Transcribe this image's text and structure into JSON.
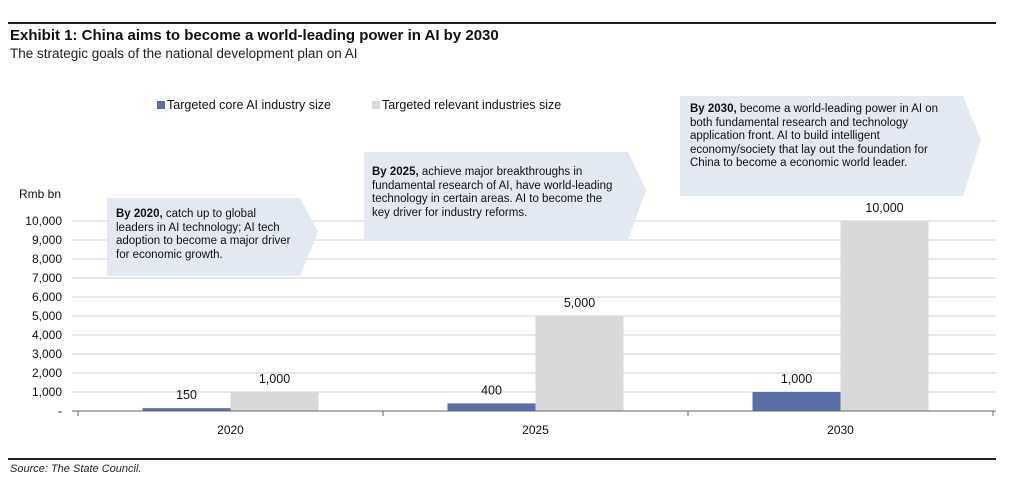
{
  "header": {
    "title": "Exhibit 1: China aims to become a world-leading power in AI by 2030",
    "subtitle": "The strategic goals of the national development plan on AI"
  },
  "source": "Source: The State Council.",
  "colors": {
    "core": "#5b6ea8",
    "relevant": "#d9d9d9",
    "callout": "#e3e8f1",
    "grid": "#d0d0d0"
  },
  "callouts": [
    {
      "bold": "By 2020,",
      "text": " catch up to global leaders in AI technology; AI tech adoption to become a major driver for economic growth."
    },
    {
      "bold": "By 2025,",
      "text": " achieve major breakthroughs in fundamental research of AI, have world-leading technology in certain areas. AI to become the key driver for industry reforms."
    },
    {
      "bold": "By 2030,",
      "text": " become a world-leading power in AI on both fundamental  research and technology application front. AI to build intelligent economy/society that lay out the foundation for China to become a  economic world leader."
    }
  ],
  "chart_data": {
    "type": "bar",
    "categories": [
      "2020",
      "2025",
      "2030"
    ],
    "series": [
      {
        "name": "Targeted core AI industry size",
        "values": [
          150,
          400,
          1000
        ],
        "labels": [
          "150",
          "400",
          "1,000"
        ],
        "color": "#5b6ea8"
      },
      {
        "name": "Targeted relevant industries size",
        "values": [
          1000,
          5000,
          10000
        ],
        "labels": [
          "1,000",
          "5,000",
          "10,000"
        ],
        "color": "#d9d9d9"
      }
    ],
    "ylabel": "Rmb bn",
    "ylim": [
      0,
      10000
    ],
    "yticks": [
      0,
      1000,
      2000,
      3000,
      4000,
      5000,
      6000,
      7000,
      8000,
      9000,
      10000
    ],
    "ytick_labels": [
      "-",
      "1,000",
      "2,000",
      "3,000",
      "4,000",
      "5,000",
      "6,000",
      "7,000",
      "8,000",
      "9,000",
      "10,000"
    ],
    "grid": true,
    "legend_position": "top-left"
  }
}
